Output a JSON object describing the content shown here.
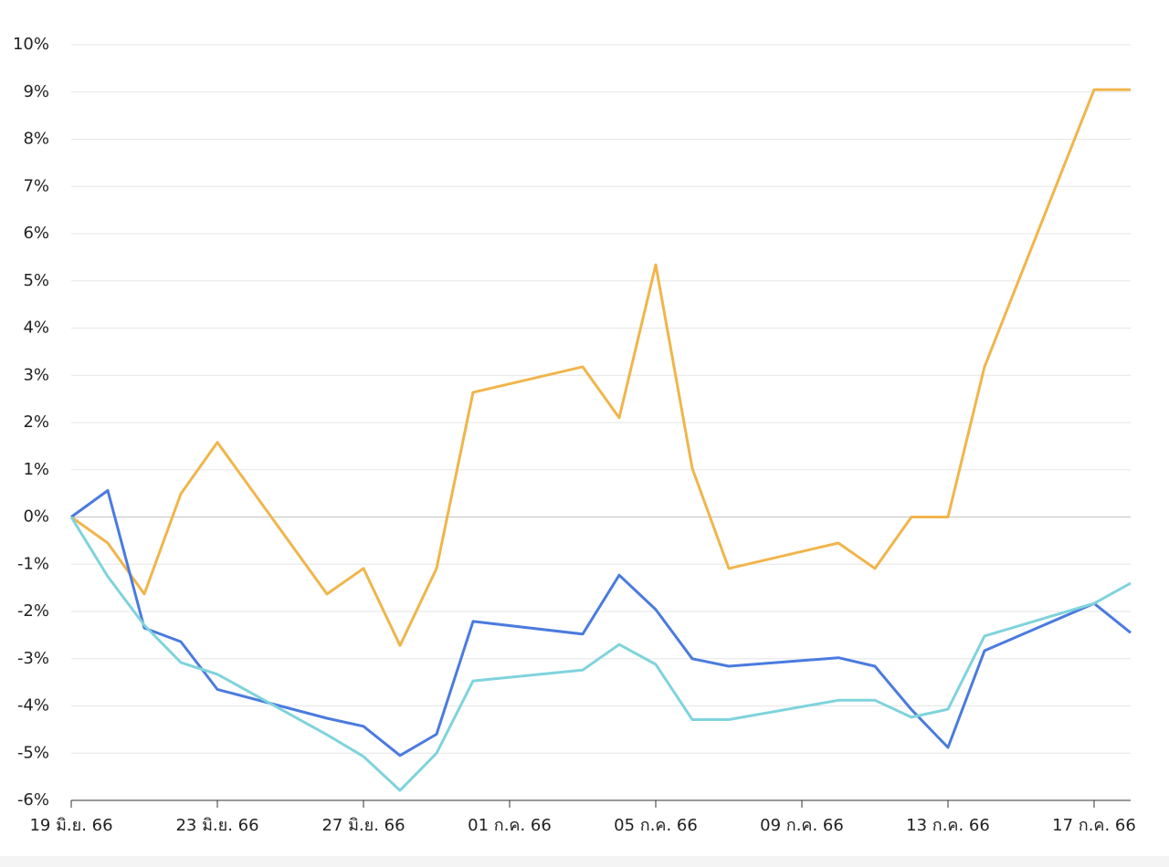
{
  "chart_data": {
    "type": "line",
    "x": [
      "2023-06-19",
      "2023-06-20",
      "2023-06-21",
      "2023-06-22",
      "2023-06-23",
      "2023-06-26",
      "2023-06-27",
      "2023-06-28",
      "2023-06-29",
      "2023-06-30",
      "2023-07-03",
      "2023-07-04",
      "2023-07-05",
      "2023-07-06",
      "2023-07-07",
      "2023-07-10",
      "2023-07-11",
      "2023-07-12",
      "2023-07-13",
      "2023-07-14",
      "2023-07-17",
      "2023-07-18"
    ],
    "series": [
      {
        "color": "#f0b54b",
        "values": [
          0,
          -0.55,
          -1.63,
          0.49,
          1.58,
          -1.63,
          -1.09,
          -2.72,
          -1.09,
          2.64,
          3.18,
          2.1,
          5.34,
          1.03,
          -1.09,
          -0.55,
          -1.09,
          0,
          0,
          3.18,
          9.05,
          9.05
        ]
      },
      {
        "color": "#4a7bdf",
        "values": [
          0,
          0.56,
          -2.35,
          -2.64,
          -3.65,
          -4.26,
          -4.43,
          -5.05,
          -4.6,
          -2.21,
          -2.48,
          -1.23,
          -1.96,
          -3.0,
          -3.16,
          -2.98,
          -3.16,
          -4.08,
          -4.88,
          -2.83,
          -1.83,
          -2.45
        ]
      },
      {
        "color": "#7fd3dc",
        "values": [
          0,
          -1.26,
          -2.29,
          -3.08,
          -3.33,
          -4.61,
          -5.07,
          -5.79,
          -5.0,
          -3.47,
          -3.24,
          -2.7,
          -3.12,
          -4.29,
          -4.29,
          -3.88,
          -3.88,
          -4.24,
          -4.07,
          -2.52,
          -1.83,
          -1.4
        ]
      }
    ],
    "xlim": [
      "2023-06-19",
      "2023-07-18"
    ],
    "xticks": [
      {
        "value": "2023-06-19",
        "label": "19 มิ.ย. 66"
      },
      {
        "value": "2023-06-23",
        "label": "23 มิ.ย. 66"
      },
      {
        "value": "2023-06-27",
        "label": "27 มิ.ย. 66"
      },
      {
        "value": "2023-07-01",
        "label": "01 ก.ค. 66"
      },
      {
        "value": "2023-07-05",
        "label": "05 ก.ค. 66"
      },
      {
        "value": "2023-07-09",
        "label": "09 ก.ค. 66"
      },
      {
        "value": "2023-07-13",
        "label": "13 ก.ค. 66"
      },
      {
        "value": "2023-07-17",
        "label": "17 ก.ค. 66"
      }
    ],
    "ylim": [
      -6,
      10
    ],
    "yticks": [
      {
        "value": -6,
        "label": "-6%"
      },
      {
        "value": -5,
        "label": "-5%"
      },
      {
        "value": -4,
        "label": "-4%"
      },
      {
        "value": -3,
        "label": "-3%"
      },
      {
        "value": -2,
        "label": "-2%"
      },
      {
        "value": -1,
        "label": "-1%"
      },
      {
        "value": 0,
        "label": "0%"
      },
      {
        "value": 1,
        "label": "1%"
      },
      {
        "value": 2,
        "label": "2%"
      },
      {
        "value": 3,
        "label": "3%"
      },
      {
        "value": 4,
        "label": "4%"
      },
      {
        "value": 5,
        "label": "5%"
      },
      {
        "value": 6,
        "label": "6%"
      },
      {
        "value": 7,
        "label": "7%"
      },
      {
        "value": 8,
        "label": "8%"
      },
      {
        "value": 9,
        "label": "9%"
      },
      {
        "value": 10,
        "label": "10%"
      }
    ],
    "grid": true
  }
}
